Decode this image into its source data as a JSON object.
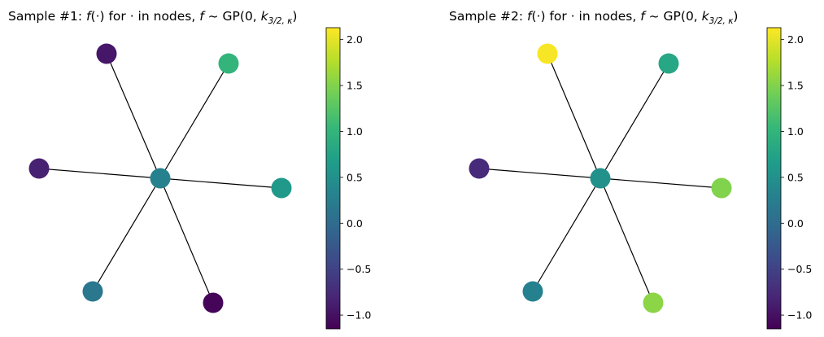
{
  "colormap": {
    "name": "viridis",
    "stops": [
      "#440154",
      "#482878",
      "#3e4989",
      "#31688e",
      "#26828e",
      "#1f9e89",
      "#35b779",
      "#6ece58",
      "#b5de2b",
      "#fde725"
    ]
  },
  "chart_data": [
    {
      "type": "graph",
      "title_prefix": "Sample #1: ",
      "title_f": "f",
      "title_mid": "(·) for · in nodes, ",
      "title_f2": "f",
      "title_dist": " ~ GP(0, ",
      "title_k": "k",
      "title_sub": "3/2, κ",
      "title_end": ")",
      "nodes": [
        {
          "id": "center",
          "value": 0.3
        },
        {
          "id": "top-left",
          "value": -0.95
        },
        {
          "id": "top-right",
          "value": 1.0
        },
        {
          "id": "left",
          "value": -0.85
        },
        {
          "id": "right",
          "value": 0.6
        },
        {
          "id": "bottom-left",
          "value": 0.15
        },
        {
          "id": "bottom-right",
          "value": -1.1
        }
      ],
      "edges": [
        [
          "center",
          "top-left"
        ],
        [
          "center",
          "top-right"
        ],
        [
          "center",
          "left"
        ],
        [
          "center",
          "right"
        ],
        [
          "center",
          "bottom-left"
        ],
        [
          "center",
          "bottom-right"
        ]
      ],
      "colorbar": {
        "vmin": -1.15,
        "vmax": 2.13,
        "ticks": [
          -1.0,
          -0.5,
          0.0,
          0.5,
          1.0,
          1.5,
          2.0
        ],
        "tick_labels": [
          "−1.0",
          "−0.5",
          "0.0",
          "0.5",
          "1.0",
          "1.5",
          "2.0"
        ]
      }
    },
    {
      "type": "graph",
      "title_prefix": "Sample #2: ",
      "title_f": "f",
      "title_mid": "(·) for · in nodes, ",
      "title_f2": "f",
      "title_dist": " ~ GP(0, ",
      "title_k": "k",
      "title_sub": "3/2, κ",
      "title_end": ")",
      "nodes": [
        {
          "id": "center",
          "value": 0.5
        },
        {
          "id": "top-left",
          "value": 2.1
        },
        {
          "id": "top-right",
          "value": 0.8
        },
        {
          "id": "left",
          "value": -0.75
        },
        {
          "id": "right",
          "value": 1.5
        },
        {
          "id": "bottom-left",
          "value": 0.3
        },
        {
          "id": "bottom-right",
          "value": 1.55
        }
      ],
      "edges": [
        [
          "center",
          "top-left"
        ],
        [
          "center",
          "top-right"
        ],
        [
          "center",
          "left"
        ],
        [
          "center",
          "right"
        ],
        [
          "center",
          "bottom-left"
        ],
        [
          "center",
          "bottom-right"
        ]
      ],
      "colorbar": {
        "vmin": -1.15,
        "vmax": 2.13,
        "ticks": [
          -1.0,
          -0.5,
          0.0,
          0.5,
          1.0,
          1.5,
          2.0
        ],
        "tick_labels": [
          "−1.0",
          "−0.5",
          "0.0",
          "0.5",
          "1.0",
          "1.5",
          "2.0"
        ]
      }
    }
  ]
}
